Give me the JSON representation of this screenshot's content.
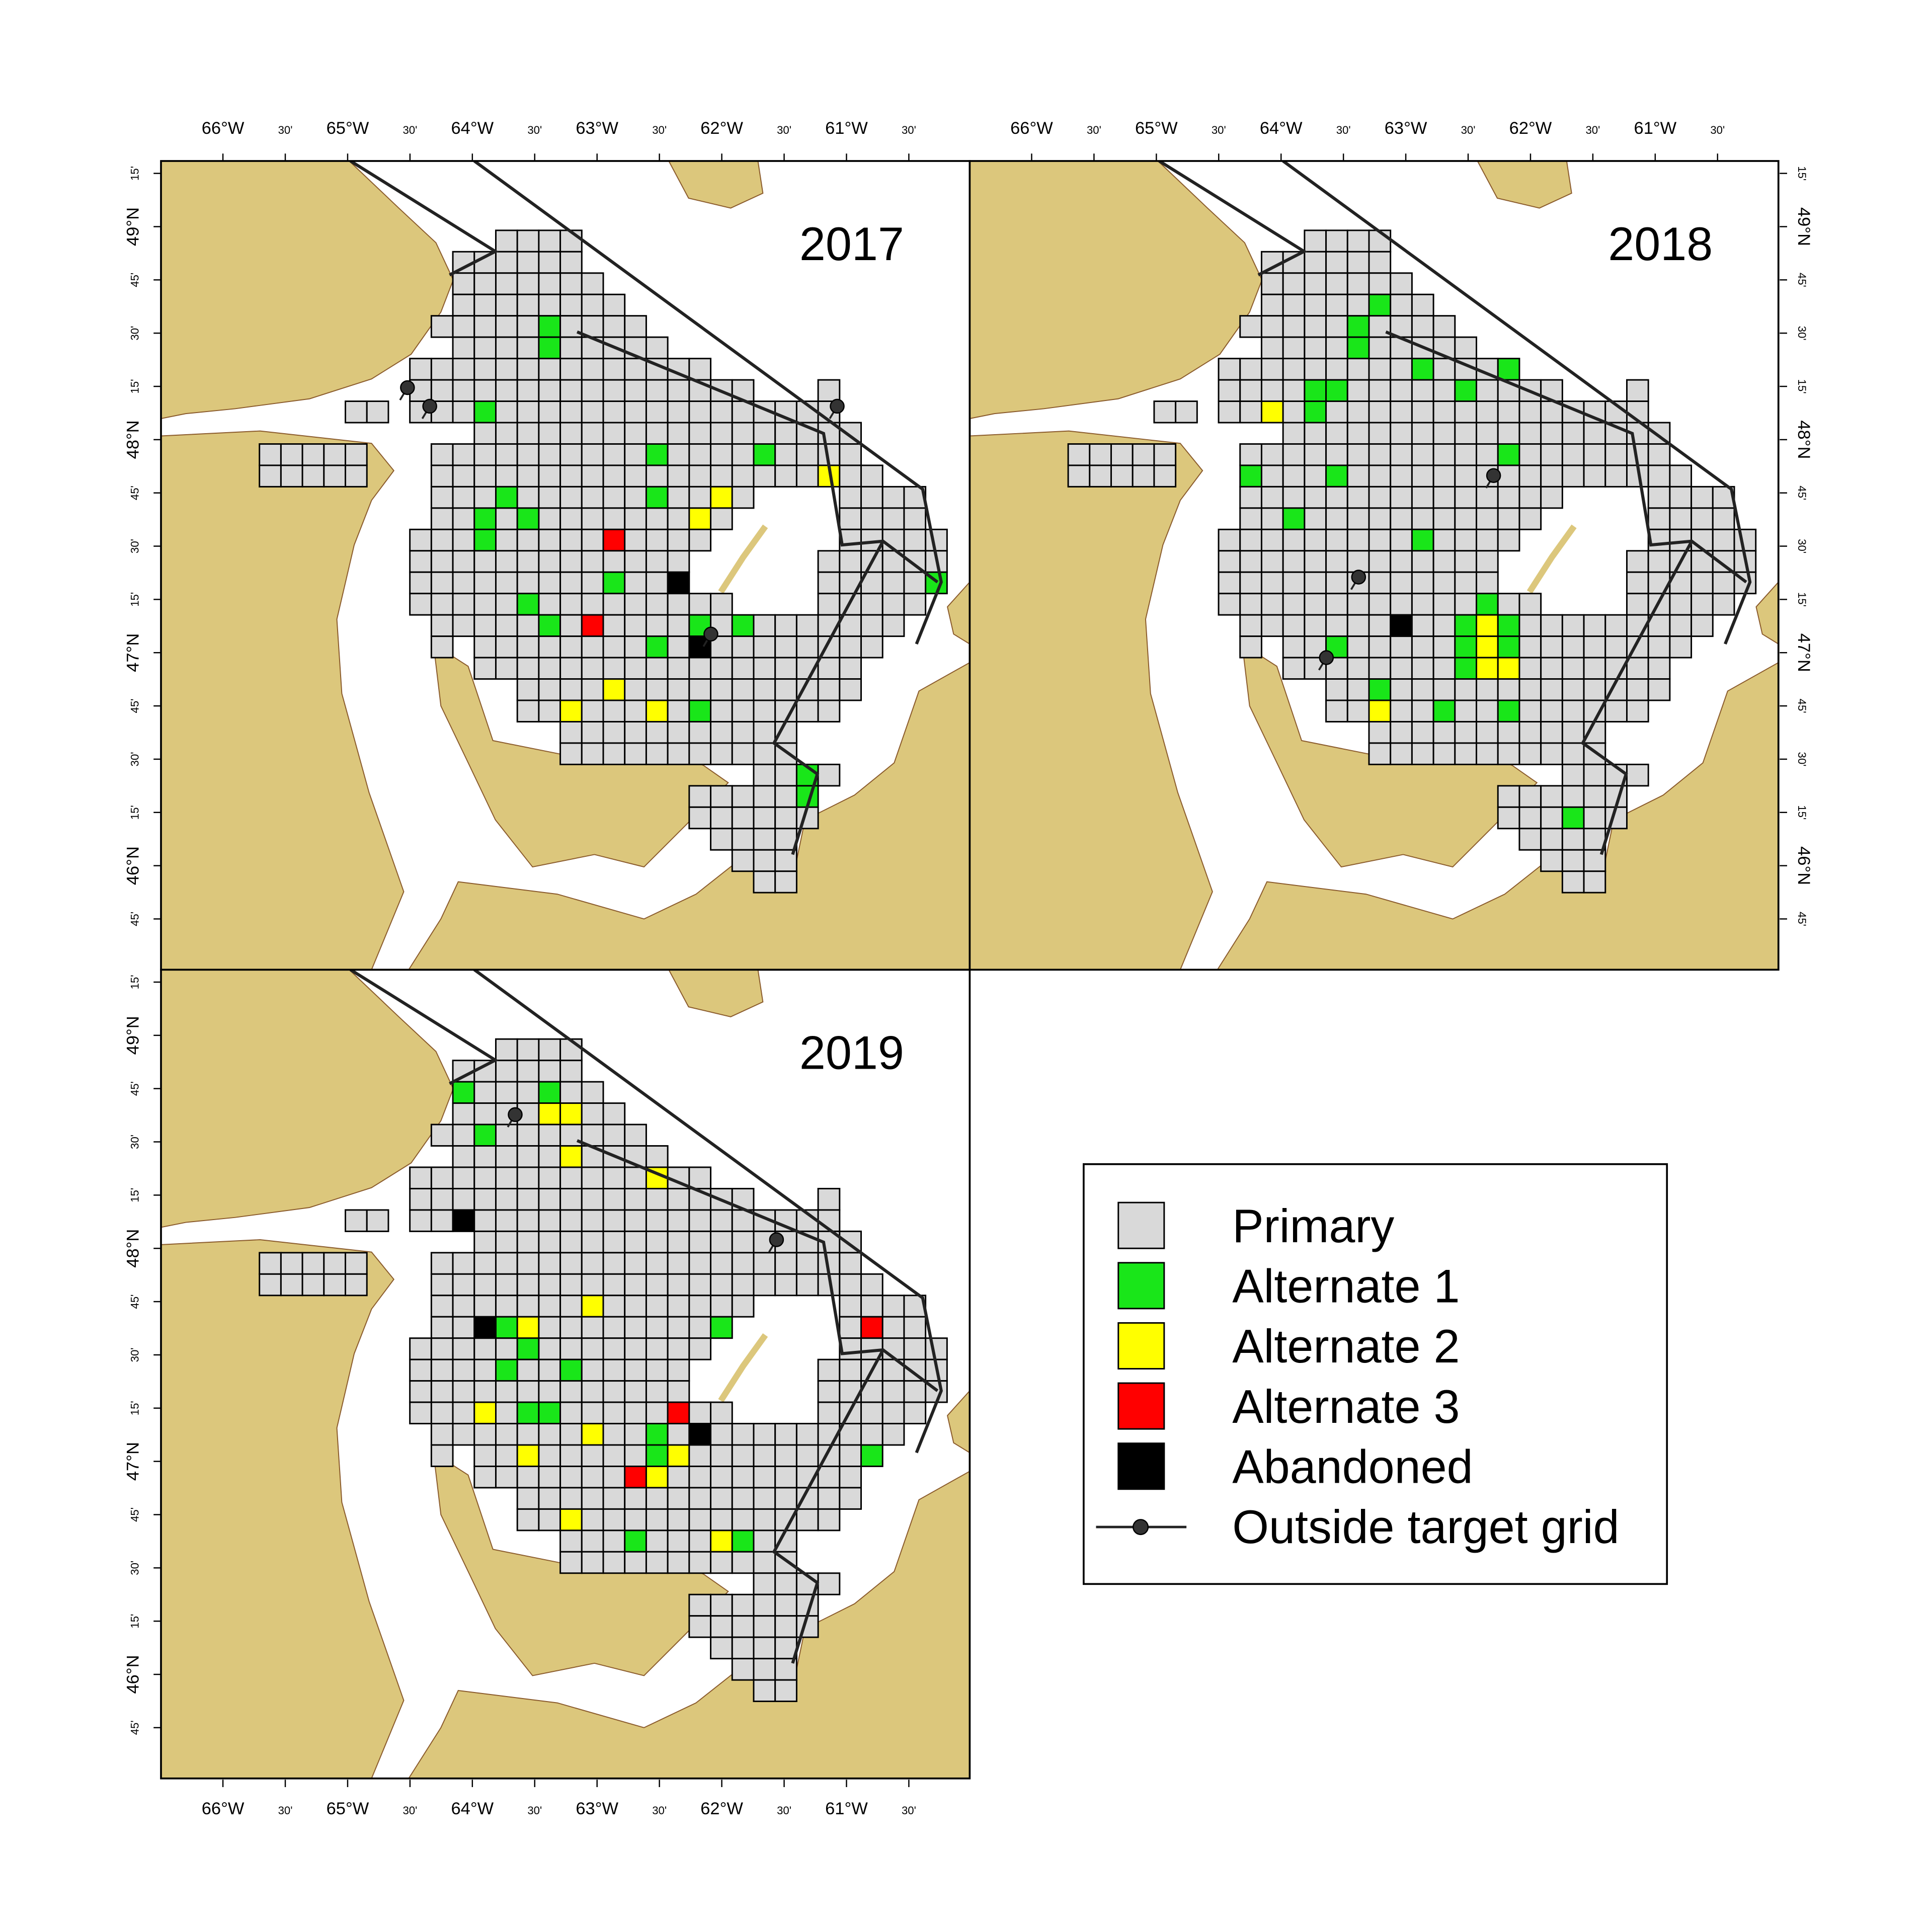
{
  "panels": [
    {
      "year": "2017"
    },
    {
      "year": "2018"
    },
    {
      "year": "2019"
    }
  ],
  "axes": {
    "longitude": [
      "66°W",
      "30'",
      "65°W",
      "30'",
      "64°W",
      "30'",
      "63°W",
      "30'",
      "62°W",
      "30'",
      "61°W",
      "30'"
    ],
    "latitude": [
      "15'",
      "49°N",
      "45'",
      "30'",
      "15'",
      "48°N",
      "45'",
      "30'",
      "15'",
      "47°N",
      "45'",
      "30'",
      "15'",
      "46°N",
      "45'"
    ]
  },
  "legend": {
    "items": [
      "Primary",
      "Alternate 1",
      "Alternate 2",
      "Alternate 3",
      "Abandoned",
      "Outside target grid"
    ]
  }
}
